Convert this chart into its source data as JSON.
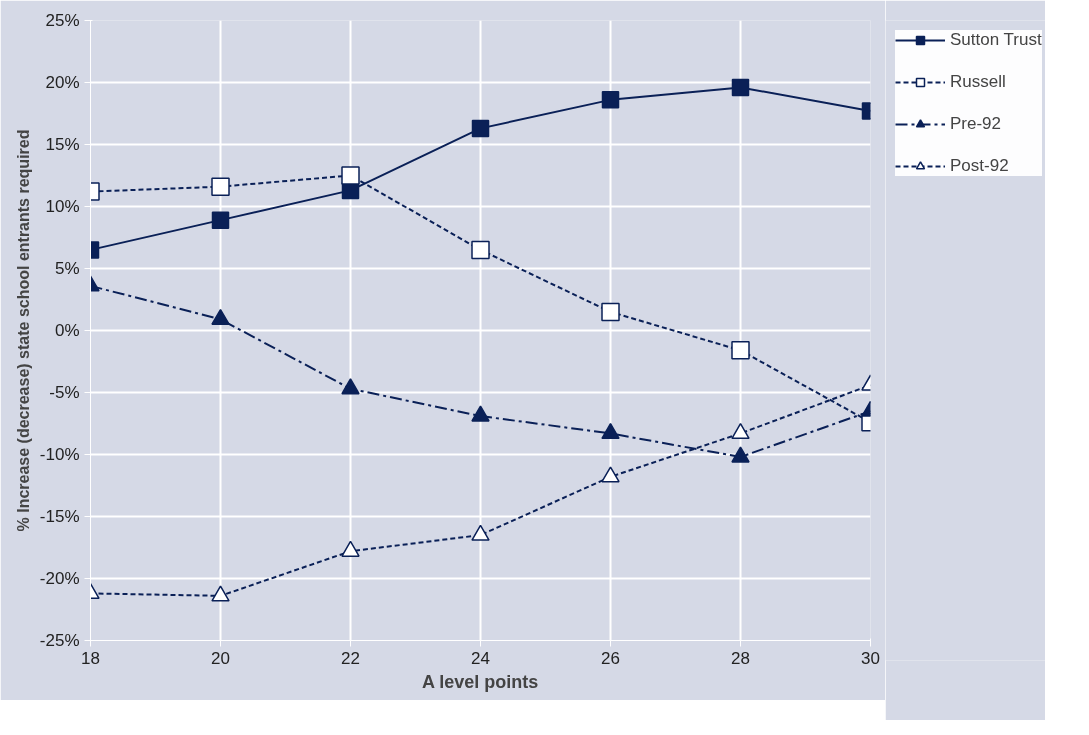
{
  "chart_data": {
    "type": "line",
    "xlabel": "A level points",
    "ylabel": "% Increase (decrease) state school entrants required",
    "x": [
      18,
      20,
      22,
      24,
      26,
      28,
      30
    ],
    "series": [
      {
        "name": "Sutton Trust",
        "color": "#0a2057",
        "marker": "square",
        "line_style": "solid",
        "values": [
          6.5,
          8.9,
          11.3,
          16.3,
          18.6,
          19.6,
          17.7
        ]
      },
      {
        "name": "Russell",
        "color": "#0a2057",
        "marker": "square_open",
        "line_style": "dashed",
        "values": [
          11.2,
          11.6,
          12.5,
          6.5,
          1.5,
          -1.6,
          -7.4
        ]
      },
      {
        "name": "Pre-92",
        "color": "#0a2057",
        "marker": "triangle",
        "line_style": "dashdot",
        "values": [
          3.6,
          0.9,
          -4.7,
          -6.9,
          -8.3,
          -10.2,
          -6.5
        ]
      },
      {
        "name": "Post-92",
        "color": "#0a2057",
        "marker": "triangle_open",
        "line_style": "dashed",
        "values": [
          -21.2,
          -21.4,
          -17.8,
          -16.5,
          -11.8,
          -8.3,
          -4.4
        ]
      }
    ],
    "xlim": [
      18,
      30
    ],
    "xticks": [
      18,
      20,
      22,
      24,
      26,
      28,
      30
    ],
    "ylim": [
      -25,
      25
    ],
    "yticks": [
      {
        "value": -25,
        "label": "-25%"
      },
      {
        "value": -20,
        "label": "-20%"
      },
      {
        "value": -15,
        "label": "-15%"
      },
      {
        "value": -10,
        "label": "-10%"
      },
      {
        "value": -5,
        "label": "-5%"
      },
      {
        "value": 0,
        "label": "0%"
      },
      {
        "value": 5,
        "label": "5%"
      },
      {
        "value": 10,
        "label": "10%"
      },
      {
        "value": 15,
        "label": "15%"
      },
      {
        "value": 20,
        "label": "20%"
      },
      {
        "value": 25,
        "label": "25%"
      }
    ],
    "grid": true,
    "legend": "top right"
  }
}
